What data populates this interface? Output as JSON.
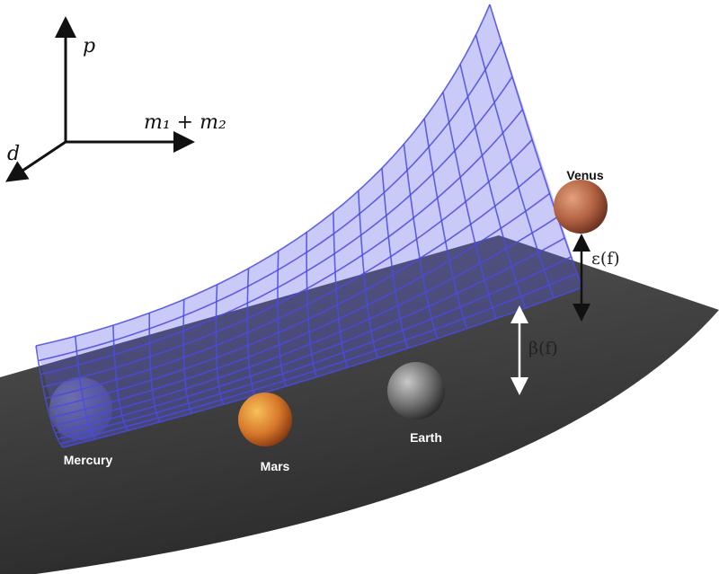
{
  "axes": {
    "vertical": "p",
    "horizontal": "m₁ + m₂",
    "depth": "d"
  },
  "planets": [
    {
      "label": "Mercury"
    },
    {
      "label": "Mars"
    },
    {
      "label": "Earth"
    },
    {
      "label": "Venus"
    }
  ],
  "annotations": {
    "epsilon": "ε(f)",
    "beta": "β(f)"
  }
}
